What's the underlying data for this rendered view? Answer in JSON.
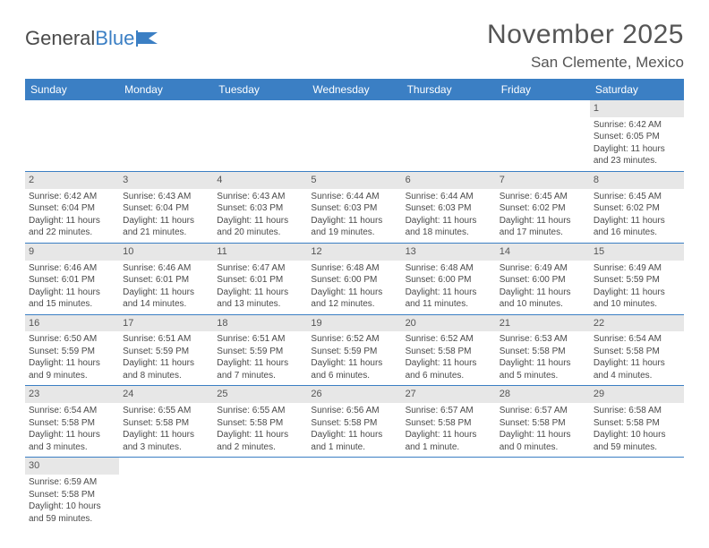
{
  "logo": {
    "word1": "General",
    "word2": "Blue"
  },
  "title": "November 2025",
  "location": "San Clemente, Mexico",
  "colors": {
    "header_bg": "#3b7fc4",
    "header_text": "#ffffff",
    "daynum_bg": "#e7e7e7",
    "text": "#4a4a4a",
    "border": "#3b7fc4",
    "page_bg": "#ffffff"
  },
  "dayNames": [
    "Sunday",
    "Monday",
    "Tuesday",
    "Wednesday",
    "Thursday",
    "Friday",
    "Saturday"
  ],
  "weeks": [
    [
      null,
      null,
      null,
      null,
      null,
      null,
      {
        "n": "1",
        "sr": "Sunrise: 6:42 AM",
        "ss": "Sunset: 6:05 PM",
        "dl1": "Daylight: 11 hours",
        "dl2": "and 23 minutes."
      }
    ],
    [
      {
        "n": "2",
        "sr": "Sunrise: 6:42 AM",
        "ss": "Sunset: 6:04 PM",
        "dl1": "Daylight: 11 hours",
        "dl2": "and 22 minutes."
      },
      {
        "n": "3",
        "sr": "Sunrise: 6:43 AM",
        "ss": "Sunset: 6:04 PM",
        "dl1": "Daylight: 11 hours",
        "dl2": "and 21 minutes."
      },
      {
        "n": "4",
        "sr": "Sunrise: 6:43 AM",
        "ss": "Sunset: 6:03 PM",
        "dl1": "Daylight: 11 hours",
        "dl2": "and 20 minutes."
      },
      {
        "n": "5",
        "sr": "Sunrise: 6:44 AM",
        "ss": "Sunset: 6:03 PM",
        "dl1": "Daylight: 11 hours",
        "dl2": "and 19 minutes."
      },
      {
        "n": "6",
        "sr": "Sunrise: 6:44 AM",
        "ss": "Sunset: 6:03 PM",
        "dl1": "Daylight: 11 hours",
        "dl2": "and 18 minutes."
      },
      {
        "n": "7",
        "sr": "Sunrise: 6:45 AM",
        "ss": "Sunset: 6:02 PM",
        "dl1": "Daylight: 11 hours",
        "dl2": "and 17 minutes."
      },
      {
        "n": "8",
        "sr": "Sunrise: 6:45 AM",
        "ss": "Sunset: 6:02 PM",
        "dl1": "Daylight: 11 hours",
        "dl2": "and 16 minutes."
      }
    ],
    [
      {
        "n": "9",
        "sr": "Sunrise: 6:46 AM",
        "ss": "Sunset: 6:01 PM",
        "dl1": "Daylight: 11 hours",
        "dl2": "and 15 minutes."
      },
      {
        "n": "10",
        "sr": "Sunrise: 6:46 AM",
        "ss": "Sunset: 6:01 PM",
        "dl1": "Daylight: 11 hours",
        "dl2": "and 14 minutes."
      },
      {
        "n": "11",
        "sr": "Sunrise: 6:47 AM",
        "ss": "Sunset: 6:01 PM",
        "dl1": "Daylight: 11 hours",
        "dl2": "and 13 minutes."
      },
      {
        "n": "12",
        "sr": "Sunrise: 6:48 AM",
        "ss": "Sunset: 6:00 PM",
        "dl1": "Daylight: 11 hours",
        "dl2": "and 12 minutes."
      },
      {
        "n": "13",
        "sr": "Sunrise: 6:48 AM",
        "ss": "Sunset: 6:00 PM",
        "dl1": "Daylight: 11 hours",
        "dl2": "and 11 minutes."
      },
      {
        "n": "14",
        "sr": "Sunrise: 6:49 AM",
        "ss": "Sunset: 6:00 PM",
        "dl1": "Daylight: 11 hours",
        "dl2": "and 10 minutes."
      },
      {
        "n": "15",
        "sr": "Sunrise: 6:49 AM",
        "ss": "Sunset: 5:59 PM",
        "dl1": "Daylight: 11 hours",
        "dl2": "and 10 minutes."
      }
    ],
    [
      {
        "n": "16",
        "sr": "Sunrise: 6:50 AM",
        "ss": "Sunset: 5:59 PM",
        "dl1": "Daylight: 11 hours",
        "dl2": "and 9 minutes."
      },
      {
        "n": "17",
        "sr": "Sunrise: 6:51 AM",
        "ss": "Sunset: 5:59 PM",
        "dl1": "Daylight: 11 hours",
        "dl2": "and 8 minutes."
      },
      {
        "n": "18",
        "sr": "Sunrise: 6:51 AM",
        "ss": "Sunset: 5:59 PM",
        "dl1": "Daylight: 11 hours",
        "dl2": "and 7 minutes."
      },
      {
        "n": "19",
        "sr": "Sunrise: 6:52 AM",
        "ss": "Sunset: 5:59 PM",
        "dl1": "Daylight: 11 hours",
        "dl2": "and 6 minutes."
      },
      {
        "n": "20",
        "sr": "Sunrise: 6:52 AM",
        "ss": "Sunset: 5:58 PM",
        "dl1": "Daylight: 11 hours",
        "dl2": "and 6 minutes."
      },
      {
        "n": "21",
        "sr": "Sunrise: 6:53 AM",
        "ss": "Sunset: 5:58 PM",
        "dl1": "Daylight: 11 hours",
        "dl2": "and 5 minutes."
      },
      {
        "n": "22",
        "sr": "Sunrise: 6:54 AM",
        "ss": "Sunset: 5:58 PM",
        "dl1": "Daylight: 11 hours",
        "dl2": "and 4 minutes."
      }
    ],
    [
      {
        "n": "23",
        "sr": "Sunrise: 6:54 AM",
        "ss": "Sunset: 5:58 PM",
        "dl1": "Daylight: 11 hours",
        "dl2": "and 3 minutes."
      },
      {
        "n": "24",
        "sr": "Sunrise: 6:55 AM",
        "ss": "Sunset: 5:58 PM",
        "dl1": "Daylight: 11 hours",
        "dl2": "and 3 minutes."
      },
      {
        "n": "25",
        "sr": "Sunrise: 6:55 AM",
        "ss": "Sunset: 5:58 PM",
        "dl1": "Daylight: 11 hours",
        "dl2": "and 2 minutes."
      },
      {
        "n": "26",
        "sr": "Sunrise: 6:56 AM",
        "ss": "Sunset: 5:58 PM",
        "dl1": "Daylight: 11 hours",
        "dl2": "and 1 minute."
      },
      {
        "n": "27",
        "sr": "Sunrise: 6:57 AM",
        "ss": "Sunset: 5:58 PM",
        "dl1": "Daylight: 11 hours",
        "dl2": "and 1 minute."
      },
      {
        "n": "28",
        "sr": "Sunrise: 6:57 AM",
        "ss": "Sunset: 5:58 PM",
        "dl1": "Daylight: 11 hours",
        "dl2": "and 0 minutes."
      },
      {
        "n": "29",
        "sr": "Sunrise: 6:58 AM",
        "ss": "Sunset: 5:58 PM",
        "dl1": "Daylight: 10 hours",
        "dl2": "and 59 minutes."
      }
    ],
    [
      {
        "n": "30",
        "sr": "Sunrise: 6:59 AM",
        "ss": "Sunset: 5:58 PM",
        "dl1": "Daylight: 10 hours",
        "dl2": "and 59 minutes."
      },
      null,
      null,
      null,
      null,
      null,
      null
    ]
  ]
}
